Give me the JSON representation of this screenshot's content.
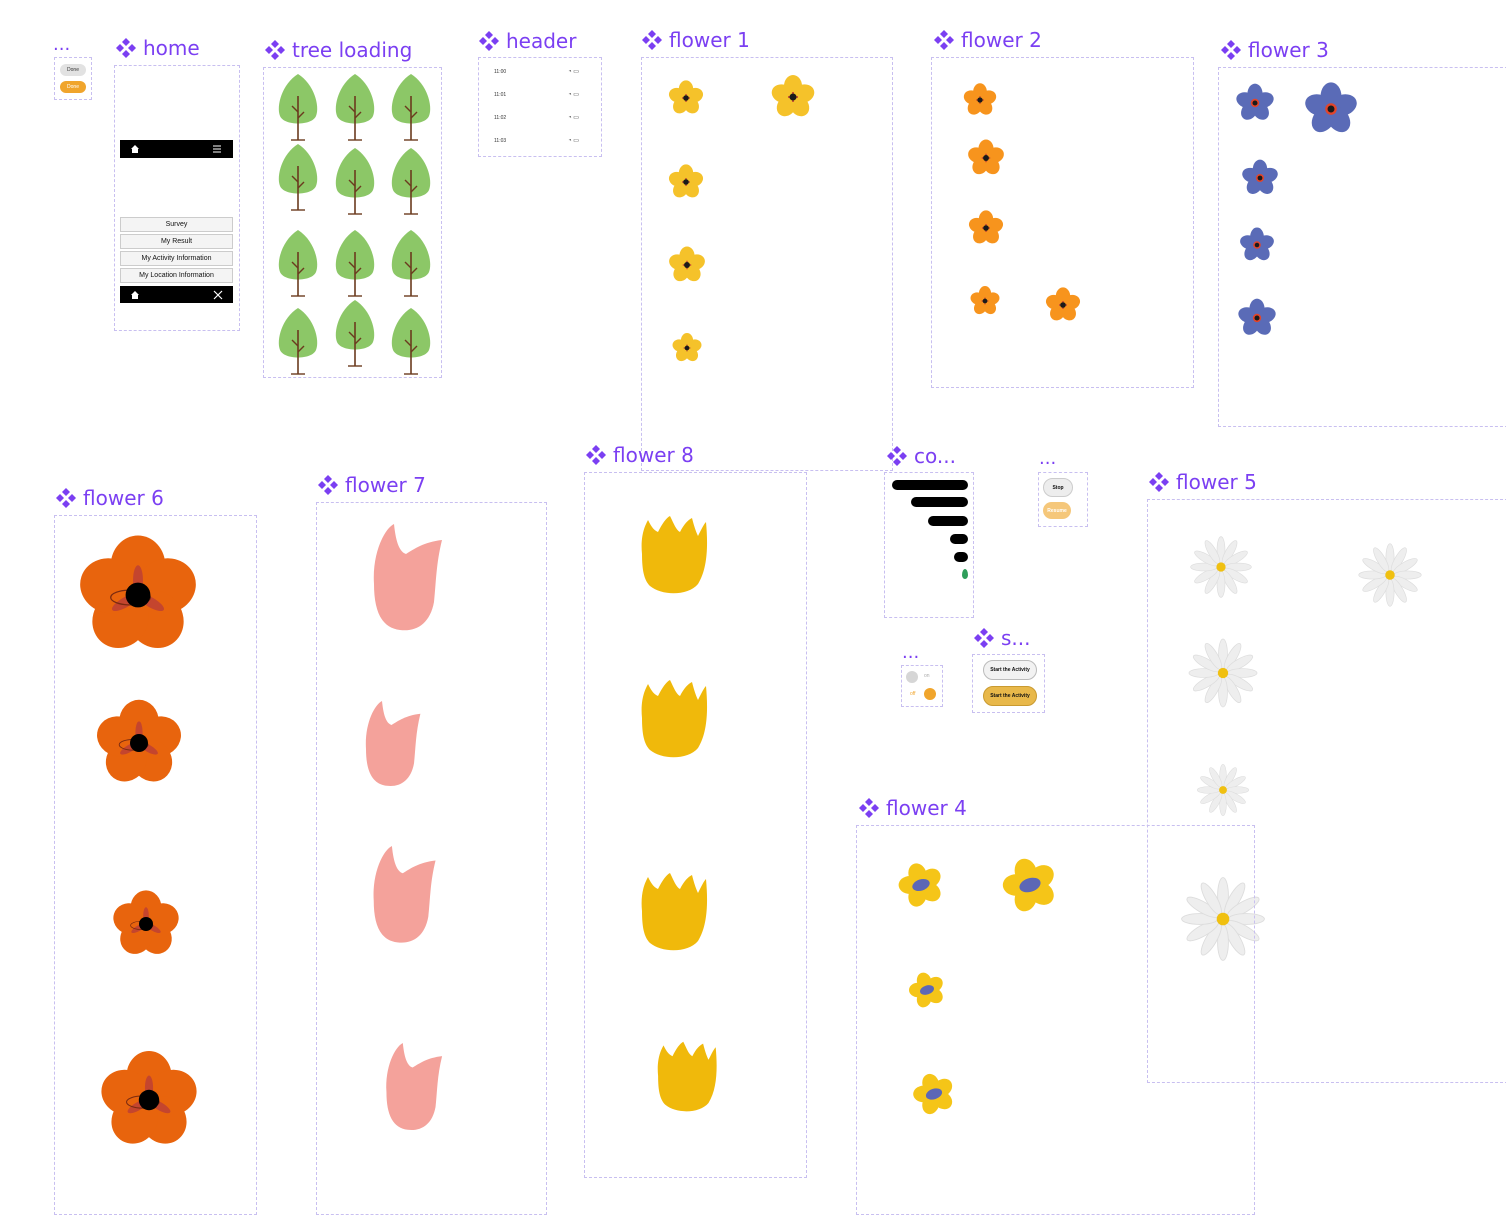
{
  "components": {
    "done": {
      "title": "...",
      "btn1": "Done",
      "btn2": "Done"
    },
    "home": {
      "title": "home",
      "menu": [
        "Survey",
        "My Result",
        "My Activity Information",
        "My Location Information"
      ]
    },
    "tree_loading": {
      "title": "tree loading"
    },
    "header": {
      "title": "header",
      "times": [
        "11:00",
        "11:01",
        "11:02",
        "11:03"
      ]
    },
    "flower1": {
      "title": "flower 1"
    },
    "flower2": {
      "title": "flower 2"
    },
    "flower3": {
      "title": "flower 3"
    },
    "flower4": {
      "title": "flower 4"
    },
    "flower5": {
      "title": "flower 5"
    },
    "flower6": {
      "title": "flower 6"
    },
    "flower7": {
      "title": "flower 7"
    },
    "flower8": {
      "title": "flower 8"
    },
    "co": {
      "title": "co..."
    },
    "stop": {
      "title": "...",
      "stop": "Stop",
      "resume": "Resume"
    },
    "toggle": {
      "title": "...",
      "on": "on",
      "off": "off"
    },
    "start": {
      "title": "s...",
      "btn1": "Start the Activity",
      "btn2": "Start the Activity"
    }
  },
  "colors": {
    "label": "#7b3ff2",
    "frame_border": "#c8bff0",
    "tree": "#8cc767",
    "trunk": "#6b3a1e",
    "flower1": "#f5c22a",
    "flower2": "#f7941d",
    "flower3": "#5a6bb7",
    "flower4": "#f5c518",
    "flower6": "#e8640d",
    "flower7": "#f4a29b",
    "flower8": "#f0b90b",
    "accent": "#f0a52c"
  }
}
